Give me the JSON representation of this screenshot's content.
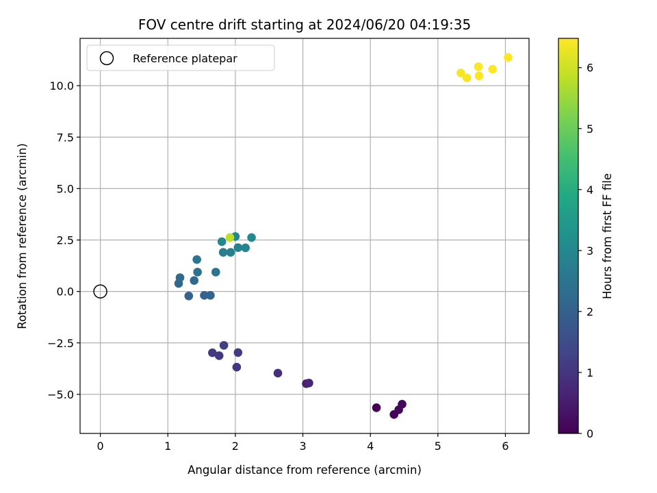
{
  "chart_data": {
    "type": "scatter",
    "title": "FOV centre drift starting at 2024/06/20 04:19:35",
    "xlabel": "Angular distance from reference (arcmin)",
    "ylabel": "Rotation from reference (arcmin)",
    "xlim": [
      -0.3,
      6.35
    ],
    "ylim": [
      -6.9,
      12.3
    ],
    "xticks": [
      0,
      1,
      2,
      3,
      4,
      5,
      6
    ],
    "yticks": [
      -5.0,
      -2.5,
      0.0,
      2.5,
      5.0,
      7.5,
      10.0
    ],
    "xtick_labels": [
      "0",
      "1",
      "2",
      "3",
      "4",
      "5",
      "6"
    ],
    "ytick_labels": [
      "−5.0",
      "−2.5",
      "0.0",
      "2.5",
      "5.0",
      "7.5",
      "10.0"
    ],
    "grid": true,
    "legend": {
      "position": "top-left",
      "entries": [
        {
          "label": "Reference platepar",
          "marker": "open-circle"
        }
      ]
    },
    "reference_point": {
      "x": 0,
      "y": 0
    },
    "colormap": "viridis",
    "colorbar": {
      "label": "Hours from first FF file",
      "range": [
        0,
        6.48
      ],
      "ticks": [
        0,
        1,
        2,
        3,
        4,
        5,
        6
      ],
      "tick_labels": [
        "0",
        "1",
        "2",
        "3",
        "4",
        "5",
        "6"
      ]
    },
    "points": [
      {
        "x": 4.09,
        "y": -5.65,
        "hours": 0.0
      },
      {
        "x": 4.35,
        "y": -5.98,
        "hours": 0.05
      },
      {
        "x": 4.42,
        "y": -5.75,
        "hours": 0.1
      },
      {
        "x": 4.47,
        "y": -5.48,
        "hours": 0.15
      },
      {
        "x": 3.05,
        "y": -4.48,
        "hours": 0.6
      },
      {
        "x": 3.09,
        "y": -4.45,
        "hours": 0.7
      },
      {
        "x": 2.63,
        "y": -3.97,
        "hours": 0.9
      },
      {
        "x": 2.02,
        "y": -3.68,
        "hours": 1.0
      },
      {
        "x": 1.76,
        "y": -3.12,
        "hours": 1.05
      },
      {
        "x": 1.66,
        "y": -2.98,
        "hours": 1.1
      },
      {
        "x": 2.04,
        "y": -2.97,
        "hours": 1.15
      },
      {
        "x": 1.83,
        "y": -2.62,
        "hours": 1.2
      },
      {
        "x": 1.31,
        "y": -0.22,
        "hours": 2.0
      },
      {
        "x": 1.54,
        "y": -0.19,
        "hours": 2.05
      },
      {
        "x": 1.63,
        "y": -0.19,
        "hours": 2.1
      },
      {
        "x": 1.16,
        "y": 0.39,
        "hours": 2.15
      },
      {
        "x": 1.39,
        "y": 0.53,
        "hours": 2.2
      },
      {
        "x": 1.18,
        "y": 0.67,
        "hours": 2.25
      },
      {
        "x": 1.44,
        "y": 0.94,
        "hours": 2.4
      },
      {
        "x": 1.71,
        "y": 0.94,
        "hours": 2.55
      },
      {
        "x": 1.43,
        "y": 1.55,
        "hours": 2.5
      },
      {
        "x": 1.82,
        "y": 1.9,
        "hours": 2.75
      },
      {
        "x": 1.93,
        "y": 1.9,
        "hours": 2.8
      },
      {
        "x": 2.04,
        "y": 2.13,
        "hours": 2.85
      },
      {
        "x": 2.15,
        "y": 2.12,
        "hours": 2.9
      },
      {
        "x": 1.8,
        "y": 2.42,
        "hours": 2.95
      },
      {
        "x": 2.0,
        "y": 2.67,
        "hours": 3.0
      },
      {
        "x": 2.24,
        "y": 2.62,
        "hours": 3.05
      },
      {
        "x": 1.92,
        "y": 2.62,
        "hours": 5.85
      },
      {
        "x": 5.34,
        "y": 10.62,
        "hours": 6.4
      },
      {
        "x": 5.43,
        "y": 10.38,
        "hours": 6.42
      },
      {
        "x": 5.61,
        "y": 10.48,
        "hours": 6.44
      },
      {
        "x": 5.6,
        "y": 10.92,
        "hours": 6.45
      },
      {
        "x": 5.81,
        "y": 10.8,
        "hours": 6.46
      },
      {
        "x": 6.04,
        "y": 11.37,
        "hours": 6.48
      }
    ]
  }
}
